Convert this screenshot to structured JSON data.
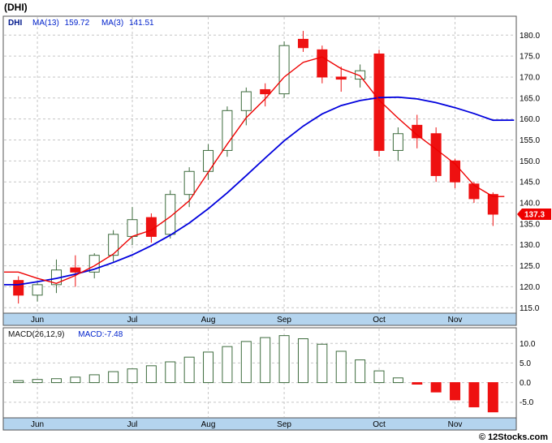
{
  "title": "(DHI)",
  "footer": "© 12Stocks.com",
  "colors": {
    "border": "#555555",
    "grid": "#c6c6c6",
    "up": "#ffffff",
    "up_border": "#3d6b3d",
    "down": "#ee1111",
    "ma13": "#0000dd",
    "ma3": "#ee0000",
    "month_strip": "#b4d4ee",
    "flag_bg": "#ee0000",
    "flag_text": "#ffffff"
  },
  "price_chart": {
    "legend": {
      "symbol": "DHI",
      "ma13_label": "MA(13)",
      "ma13_value": "159.72",
      "ma3_label": "MA(3)",
      "ma3_value": "141.51"
    },
    "current_price_label": "137.3"
  },
  "macd_chart": {
    "params_label": "MACD(26,12,9)",
    "value_label": "MACD:-7.48"
  },
  "chart_data": [
    {
      "type": "candlestick",
      "title": "DHI weekly price with MA(13) and MA(3) overlays",
      "months": [
        "Jun",
        "Jul",
        "Aug",
        "Sep",
        "Oct",
        "Nov"
      ],
      "month_start_index": [
        1,
        6,
        10,
        14,
        19,
        23
      ],
      "ylim": [
        113.7,
        184.5
      ],
      "y_ticks": [
        180,
        175,
        170,
        165,
        160,
        155,
        150,
        145,
        140,
        135,
        130,
        125,
        120,
        115
      ],
      "last_close": 137.3,
      "ma13_current": 159.72,
      "ma3_current": 141.51,
      "candles": [
        [
          121.5,
          122.5,
          116.0,
          118.0
        ],
        [
          118.0,
          121.0,
          116.5,
          120.5
        ],
        [
          120.5,
          126.5,
          118.5,
          124.0
        ],
        [
          124.5,
          127.5,
          120.0,
          123.5
        ],
        [
          123.5,
          128.0,
          122.0,
          127.5
        ],
        [
          127.5,
          133.5,
          126.0,
          132.5
        ],
        [
          132.0,
          139.0,
          130.0,
          136.0
        ],
        [
          136.5,
          137.5,
          130.5,
          132.0
        ],
        [
          132.5,
          143.0,
          131.5,
          142.0
        ],
        [
          142.0,
          148.5,
          139.0,
          147.5
        ],
        [
          147.5,
          154.0,
          145.5,
          152.5
        ],
        [
          152.5,
          163.0,
          151.0,
          162.0
        ],
        [
          162.0,
          167.5,
          158.5,
          166.5
        ],
        [
          167.0,
          168.5,
          163.0,
          166.0
        ],
        [
          166.0,
          178.5,
          165.0,
          177.5
        ],
        [
          179.0,
          181.0,
          176.0,
          177.0
        ],
        [
          176.5,
          177.5,
          168.5,
          170.0
        ],
        [
          170.0,
          172.5,
          166.5,
          169.5
        ],
        [
          169.5,
          173.0,
          167.5,
          171.5
        ],
        [
          175.5,
          176.5,
          151.0,
          152.5
        ],
        [
          152.5,
          158.0,
          150.0,
          156.5
        ],
        [
          158.5,
          161.0,
          153.0,
          155.5
        ],
        [
          156.5,
          158.0,
          145.0,
          146.5
        ],
        [
          150.0,
          150.5,
          143.5,
          145.0
        ],
        [
          144.5,
          145.0,
          140.0,
          141.0
        ],
        [
          142.0,
          142.5,
          134.5,
          137.3
        ]
      ],
      "ma13": [
        120.5,
        121.2,
        122.0,
        123.0,
        124.2,
        125.8,
        127.6,
        129.8,
        132.3,
        135.2,
        138.6,
        142.4,
        146.5,
        150.7,
        154.8,
        158.3,
        161.2,
        163.2,
        164.4,
        165.1,
        165.2,
        164.8,
        163.9,
        162.7,
        161.3,
        159.7
      ],
      "ma3": [
        123.5,
        122.0,
        120.8,
        122.7,
        125.0,
        127.8,
        132.0,
        133.5,
        136.7,
        140.5,
        147.3,
        154.0,
        160.3,
        164.8,
        170.0,
        173.5,
        174.8,
        172.0,
        170.3,
        164.5,
        160.2,
        156.2,
        152.8,
        149.3,
        144.2,
        141.5
      ]
    },
    {
      "type": "bar",
      "title": "MACD(26,12,9) histogram",
      "current": -7.48,
      "ylim": [
        -9,
        14
      ],
      "y_ticks": [
        10,
        5,
        0,
        -5
      ],
      "values": [
        0.5,
        0.8,
        1.0,
        1.4,
        2.0,
        2.8,
        3.5,
        4.3,
        5.3,
        6.5,
        7.8,
        9.2,
        10.5,
        11.5,
        12.0,
        11.2,
        9.8,
        8.0,
        5.8,
        3.0,
        1.2,
        -0.4,
        -2.4,
        -4.4,
        -6.2,
        -7.48
      ]
    }
  ]
}
